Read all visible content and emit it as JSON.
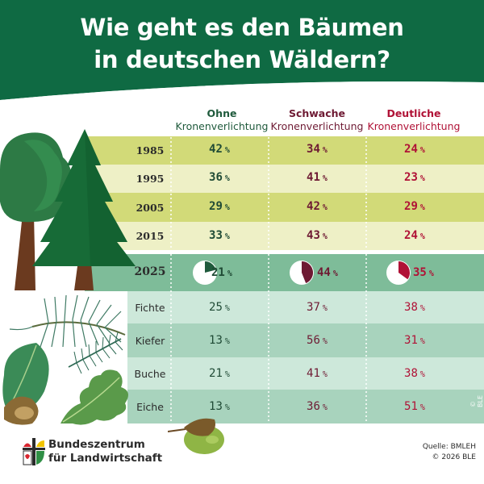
{
  "title": {
    "line1": "Wie geht es den Bäumen",
    "line2": "in deutschen Wäldern?"
  },
  "columns": [
    {
      "bold": "Ohne",
      "normal": "Kronenverlichtung",
      "color": "#1f5a3c"
    },
    {
      "bold": "Schwache",
      "normal": "Kronenverlichtung",
      "color": "#6e1a33"
    },
    {
      "bold": "Deutliche",
      "normal": "Kronenverlichtung",
      "color": "#b01236"
    }
  ],
  "years": [
    {
      "year": "1985",
      "values": [
        "42",
        "34",
        "24"
      ]
    },
    {
      "year": "1995",
      "values": [
        "36",
        "41",
        "23"
      ]
    },
    {
      "year": "2005",
      "values": [
        "29",
        "42",
        "29"
      ]
    },
    {
      "year": "2015",
      "values": [
        "33",
        "43",
        "24"
      ]
    }
  ],
  "current": {
    "year": "2025",
    "values": [
      "21",
      "44",
      "35"
    ]
  },
  "species": [
    {
      "name": "Fichte",
      "values": [
        "25",
        "37",
        "38"
      ]
    },
    {
      "name": "Kiefer",
      "values": [
        "13",
        "56",
        "31"
      ]
    },
    {
      "name": "Buche",
      "values": [
        "21",
        "41",
        "38"
      ]
    },
    {
      "name": "Eiche",
      "values": [
        "13",
        "36",
        "51"
      ]
    }
  ],
  "percent_sign": "%",
  "logo": {
    "line1": "Bundeszentrum",
    "line2": "für Landwirtschaft"
  },
  "source": {
    "line1": "Quelle: BMLEH",
    "line2": "© 2026 BLE"
  },
  "watermark": "© BLE",
  "colors": {
    "header_green": "#0f6a43",
    "year_dark": "#d2da78",
    "year_light": "#eef0c6",
    "current_row": "#7ebc99",
    "species_dark": "#a8d3bd",
    "species_light": "#cde8da",
    "pie_c1": "#1f5a3c",
    "pie_c2": "#6e1a33",
    "pie_c3": "#b01236"
  }
}
